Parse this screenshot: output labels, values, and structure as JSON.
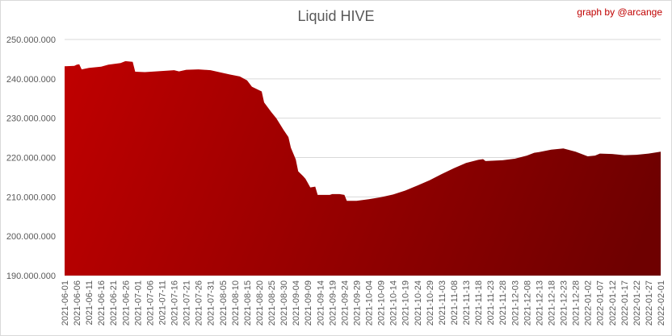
{
  "chart_data": {
    "type": "area",
    "title": "Liquid HIVE",
    "credit": "graph by @arcange",
    "xlabel": "",
    "ylabel": "",
    "ylim": [
      190000000,
      250000000
    ],
    "yticks": [
      190000000,
      200000000,
      210000000,
      220000000,
      230000000,
      240000000,
      250000000
    ],
    "ytick_labels": [
      "190.000.000",
      "200.000.000",
      "210.000.000",
      "220.000.000",
      "230.000.000",
      "240.000.000",
      "250.000.000"
    ],
    "grid": true,
    "x_start": "2021-06-01",
    "x_end": "2022-02-01",
    "x_tick_labels": [
      "2021-06-01",
      "2021-06-06",
      "2021-06-11",
      "2021-06-16",
      "2021-06-21",
      "2021-06-26",
      "2021-07-01",
      "2021-07-06",
      "2021-07-11",
      "2021-07-16",
      "2021-07-21",
      "2021-07-26",
      "2021-07-31",
      "2021-08-05",
      "2021-08-10",
      "2021-08-15",
      "2021-08-20",
      "2021-08-25",
      "2021-08-30",
      "2021-09-04",
      "2021-09-09",
      "2021-09-14",
      "2021-09-19",
      "2021-09-24",
      "2021-09-29",
      "2021-10-04",
      "2021-10-09",
      "2021-10-14",
      "2021-10-19",
      "2021-10-24",
      "2021-10-29",
      "2021-11-03",
      "2021-11-08",
      "2021-11-13",
      "2021-11-18",
      "2021-11-23",
      "2021-11-28",
      "2021-12-03",
      "2021-12-08",
      "2021-12-13",
      "2021-12-18",
      "2021-12-23",
      "2021-12-28",
      "2022-01-02",
      "2022-01-07",
      "2022-01-12",
      "2022-01-17",
      "2022-01-22",
      "2022-01-27",
      "2022-02-01"
    ],
    "series": [
      {
        "color_top": "#c00000",
        "color_bottom": "#6e0000",
        "points": [
          [
            "2021-06-01",
            243200000
          ],
          [
            "2021-06-05",
            243300000
          ],
          [
            "2021-06-06",
            243600000
          ],
          [
            "2021-06-07",
            243700000
          ],
          [
            "2021-06-08",
            242400000
          ],
          [
            "2021-06-11",
            242800000
          ],
          [
            "2021-06-16",
            243100000
          ],
          [
            "2021-06-19",
            243600000
          ],
          [
            "2021-06-24",
            244000000
          ],
          [
            "2021-06-26",
            244500000
          ],
          [
            "2021-06-29",
            244300000
          ],
          [
            "2021-06-30",
            241800000
          ],
          [
            "2021-07-04",
            241700000
          ],
          [
            "2021-07-11",
            242000000
          ],
          [
            "2021-07-16",
            242200000
          ],
          [
            "2021-07-18",
            241900000
          ],
          [
            "2021-07-21",
            242300000
          ],
          [
            "2021-07-26",
            242400000
          ],
          [
            "2021-07-31",
            242200000
          ],
          [
            "2021-08-05",
            241500000
          ],
          [
            "2021-08-08",
            241100000
          ],
          [
            "2021-08-12",
            240600000
          ],
          [
            "2021-08-15",
            239600000
          ],
          [
            "2021-08-17",
            238000000
          ],
          [
            "2021-08-21",
            236800000
          ],
          [
            "2021-08-22",
            234000000
          ],
          [
            "2021-08-25",
            231500000
          ],
          [
            "2021-08-27",
            230000000
          ],
          [
            "2021-08-30",
            227000000
          ],
          [
            "2021-09-01",
            225200000
          ],
          [
            "2021-09-02",
            222500000
          ],
          [
            "2021-09-04",
            219500000
          ],
          [
            "2021-09-05",
            216500000
          ],
          [
            "2021-09-07",
            215300000
          ],
          [
            "2021-09-08",
            214600000
          ],
          [
            "2021-09-10",
            212400000
          ],
          [
            "2021-09-12",
            212600000
          ],
          [
            "2021-09-13",
            210500000
          ],
          [
            "2021-09-18",
            210500000
          ],
          [
            "2021-09-19",
            210700000
          ],
          [
            "2021-09-22",
            210700000
          ],
          [
            "2021-09-24",
            210500000
          ],
          [
            "2021-09-25",
            209000000
          ],
          [
            "2021-09-29",
            209000000
          ],
          [
            "2021-10-04",
            209400000
          ],
          [
            "2021-10-09",
            209900000
          ],
          [
            "2021-10-14",
            210600000
          ],
          [
            "2021-10-19",
            211600000
          ],
          [
            "2021-10-24",
            212900000
          ],
          [
            "2021-10-29",
            214200000
          ],
          [
            "2021-11-03",
            215800000
          ],
          [
            "2021-11-08",
            217300000
          ],
          [
            "2021-11-13",
            218600000
          ],
          [
            "2021-11-18",
            219400000
          ],
          [
            "2021-11-20",
            219600000
          ],
          [
            "2021-11-21",
            219100000
          ],
          [
            "2021-11-28",
            219300000
          ],
          [
            "2021-12-03",
            219700000
          ],
          [
            "2021-12-08",
            220500000
          ],
          [
            "2021-12-11",
            221200000
          ],
          [
            "2021-12-13",
            221400000
          ],
          [
            "2021-12-18",
            222000000
          ],
          [
            "2021-12-23",
            222300000
          ],
          [
            "2021-12-28",
            221500000
          ],
          [
            "2022-01-02",
            220300000
          ],
          [
            "2022-01-05",
            220500000
          ],
          [
            "2022-01-07",
            221000000
          ],
          [
            "2022-01-12",
            220900000
          ],
          [
            "2022-01-17",
            220600000
          ],
          [
            "2022-01-22",
            220700000
          ],
          [
            "2022-01-27",
            221000000
          ],
          [
            "2022-02-01",
            221500000
          ]
        ]
      }
    ]
  }
}
